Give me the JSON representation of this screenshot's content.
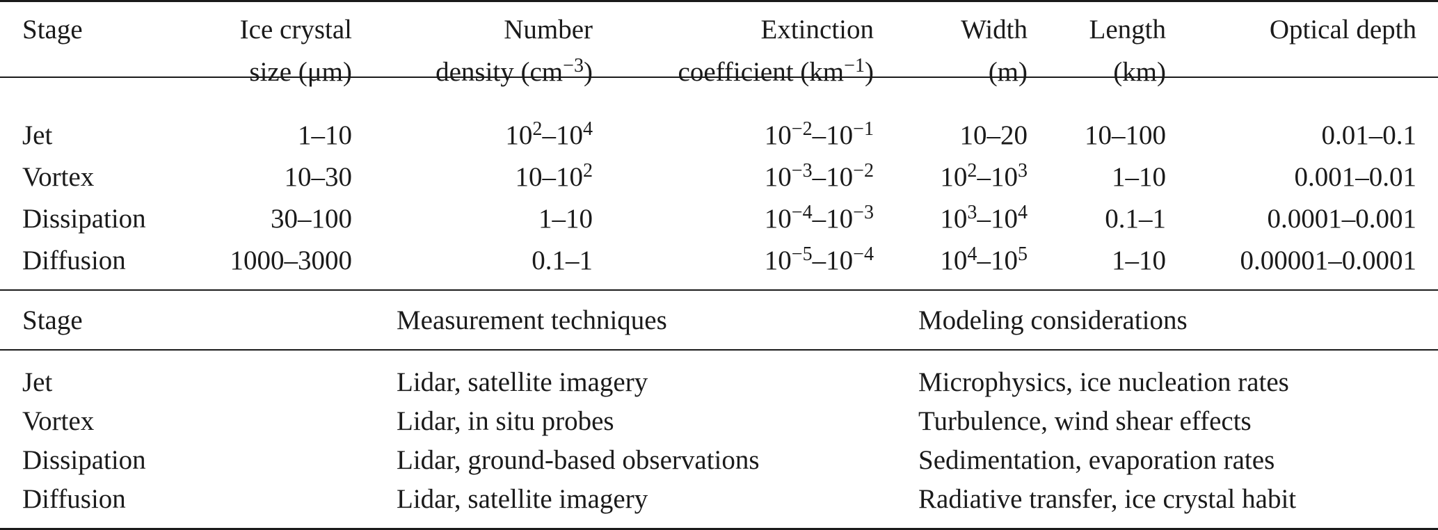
{
  "top_table": {
    "headers": [
      {
        "line1": "Stage",
        "line2": ""
      },
      {
        "line1": "Ice crystal",
        "line2": "size (μm)"
      },
      {
        "line1": "Number",
        "line2_base": "density (cm",
        "line2_sup": "−3",
        "line2_tail": ")"
      },
      {
        "line1": "Extinction",
        "line2_base": "coefficient (km",
        "line2_sup": "−1",
        "line2_tail": ")"
      },
      {
        "line1": "Width",
        "line2": "(m)"
      },
      {
        "line1": "Length",
        "line2": "(km)"
      },
      {
        "line1": "Optical depth",
        "line2": ""
      }
    ],
    "rows": [
      {
        "stage": "Jet",
        "size": "1–10",
        "density": {
          "a": "10",
          "a_sup": "2",
          "sep": "–",
          "b": "10",
          "b_sup": "4"
        },
        "extinction": {
          "a": "10",
          "a_sup": "−2",
          "sep": "–",
          "b": "10",
          "b_sup": "−1"
        },
        "width": {
          "text": "10–20"
        },
        "length": "10–100",
        "optical_depth": "0.01–0.1"
      },
      {
        "stage": "Vortex",
        "size": "10–30",
        "density": {
          "a": "10–10",
          "a_sup": "2"
        },
        "extinction": {
          "a": "10",
          "a_sup": "−3",
          "sep": "–",
          "b": "10",
          "b_sup": "−2"
        },
        "width": {
          "a": "10",
          "a_sup": "2",
          "sep": "–",
          "b": "10",
          "b_sup": "3"
        },
        "length": "1–10",
        "optical_depth": "0.001–0.01"
      },
      {
        "stage": "Dissipation",
        "size": "30–100",
        "density": {
          "text": "1–10"
        },
        "extinction": {
          "a": "10",
          "a_sup": "−4",
          "sep": "–",
          "b": "10",
          "b_sup": "−3"
        },
        "width": {
          "a": "10",
          "a_sup": "3",
          "sep": "–",
          "b": "10",
          "b_sup": "4"
        },
        "length": "0.1–1",
        "optical_depth": "0.0001–0.001"
      },
      {
        "stage": "Diffusion",
        "size": "1000–3000",
        "density": {
          "text": "0.1–1"
        },
        "extinction": {
          "a": "10",
          "a_sup": "−5",
          "sep": "–",
          "b": "10",
          "b_sup": "−4"
        },
        "width": {
          "a": "10",
          "a_sup": "4",
          "sep": "–",
          "b": "10",
          "b_sup": "5"
        },
        "length": "1–10",
        "optical_depth": "0.00001–0.0001"
      }
    ]
  },
  "bottom_table": {
    "headers": [
      "Stage",
      "Measurement techniques",
      "Modeling considerations"
    ],
    "rows": [
      {
        "stage": "Jet",
        "measurement": "Lidar, satellite imagery",
        "modeling": "Microphysics, ice nucleation rates"
      },
      {
        "stage": "Vortex",
        "measurement": "Lidar, in situ probes",
        "modeling": "Turbulence, wind shear effects"
      },
      {
        "stage": "Dissipation",
        "measurement": "Lidar, ground-based observations",
        "modeling": "Sedimentation, evaporation rates"
      },
      {
        "stage": "Diffusion",
        "measurement": "Lidar, satellite imagery",
        "modeling": "Radiative transfer, ice crystal habit"
      }
    ]
  }
}
